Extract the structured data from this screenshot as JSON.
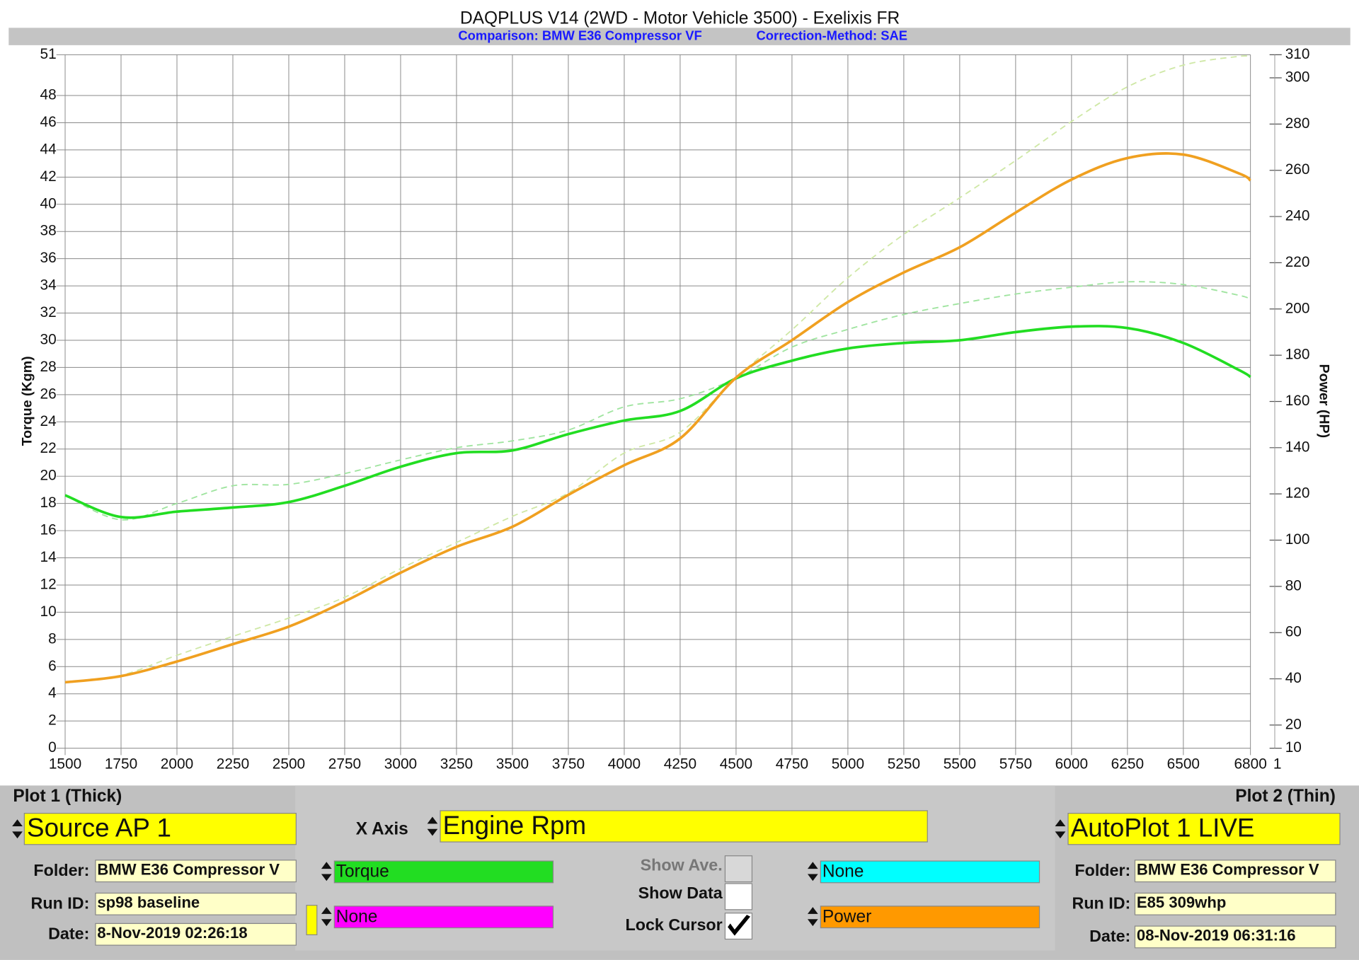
{
  "chart_data": {
    "type": "line",
    "title": "DAQPLUS V14 (2WD - Motor Vehicle 3500) - Exelixis FR",
    "subtitle": [
      "Comparison: BMW E36 Compressor VF",
      "Correction-Method: SAE"
    ],
    "y_label": "Torque (Kgm)",
    "y2_label": "Power (HP)",
    "x_end_label": "1",
    "x": [
      1500,
      1750,
      2000,
      2250,
      2500,
      2750,
      3000,
      3250,
      3500,
      3750,
      4000,
      4250,
      4500,
      4750,
      5000,
      5250,
      5500,
      5750,
      6000,
      6250,
      6500,
      6750,
      6800
    ],
    "xlim": [
      1500,
      6800
    ],
    "xticks": [
      1500,
      1750,
      2000,
      2250,
      2500,
      2750,
      3000,
      3250,
      3500,
      3750,
      4000,
      4250,
      4500,
      4750,
      5000,
      5250,
      5500,
      5750,
      6000,
      6250,
      6500,
      6800
    ],
    "ylim": [
      0,
      51
    ],
    "yticks": [
      0,
      2,
      4,
      6,
      8,
      10,
      12,
      14,
      16,
      18,
      20,
      22,
      24,
      26,
      28,
      30,
      32,
      34,
      36,
      38,
      40,
      42,
      44,
      46,
      48,
      51
    ],
    "y2lim": [
      10,
      310
    ],
    "y2ticks": [
      10,
      20,
      40,
      60,
      80,
      100,
      120,
      140,
      160,
      180,
      200,
      220,
      240,
      260,
      280,
      300,
      310
    ],
    "grid": true,
    "series": [
      {
        "color": "#9fe49f",
        "width": 1.5,
        "dash": "7 5",
        "values": [
          18.6,
          16.8,
          18.0,
          19.3,
          19.4,
          20.2,
          21.2,
          22.1,
          22.6,
          23.4,
          25.1,
          25.7,
          27.2,
          29.5,
          30.8,
          31.9,
          32.7,
          33.4,
          33.9,
          34.3,
          34.1,
          33.3,
          33.0
        ]
      },
      {
        "color": "#cfe8a6",
        "width": 1.5,
        "dash": "7 5",
        "axis": "y2",
        "values": [
          38.5,
          41.5,
          50.2,
          58.4,
          66.3,
          75.3,
          87.7,
          99.0,
          110.3,
          120.4,
          137.7,
          146.7,
          170.3,
          191.0,
          213.5,
          232.3,
          248.1,
          264.2,
          281.1,
          296.1,
          305.5,
          309.3,
          308.9
        ]
      },
      {
        "color": "#22dd22",
        "width": 3,
        "values": [
          18.6,
          17.0,
          17.4,
          17.7,
          18.1,
          19.3,
          20.7,
          21.7,
          21.9,
          23.1,
          24.1,
          24.8,
          27.2,
          28.5,
          29.4,
          29.8,
          30.0,
          30.6,
          31.0,
          30.9,
          29.8,
          27.8,
          27.3
        ]
      },
      {
        "color": "#f0a020",
        "width": 3,
        "axis": "y2",
        "values": [
          38.5,
          41.2,
          47.5,
          55.0,
          62.6,
          73.5,
          85.9,
          97.1,
          105.8,
          119.6,
          132.4,
          144.0,
          170.3,
          186.5,
          203.0,
          215.8,
          226.7,
          241.7,
          256.0,
          265.3,
          266.8,
          258.6,
          255.6
        ]
      }
    ]
  },
  "panel": {
    "plot1_label": "Plot 1 (Thick)",
    "plot2_label": "Plot 2 (Thin)",
    "source": "Source AP 1",
    "x_axis_label": "X Axis",
    "x_axis_value": "Engine Rpm",
    "autoplot": "AutoPlot 1 LIVE",
    "left": {
      "folder_label": "Folder:",
      "folder": "BMW E36 Compressor V",
      "run_label": "Run ID:",
      "run": "sp98 baseline",
      "date_label": "Date:",
      "date": "8-Nov-2019 02:26:18"
    },
    "right": {
      "folder_label": "Folder:",
      "folder": "BMW E36 Compressor V",
      "run_label": "Run ID:",
      "run": "E85 309whp",
      "date_label": "Date:",
      "date": "08-Nov-2019 06:31:16"
    },
    "channels": [
      "Torque",
      "None",
      "None",
      "Power"
    ],
    "show_ave": "Show Ave.",
    "show_data": "Show Data",
    "lock_cursor": "Lock Cursor"
  }
}
